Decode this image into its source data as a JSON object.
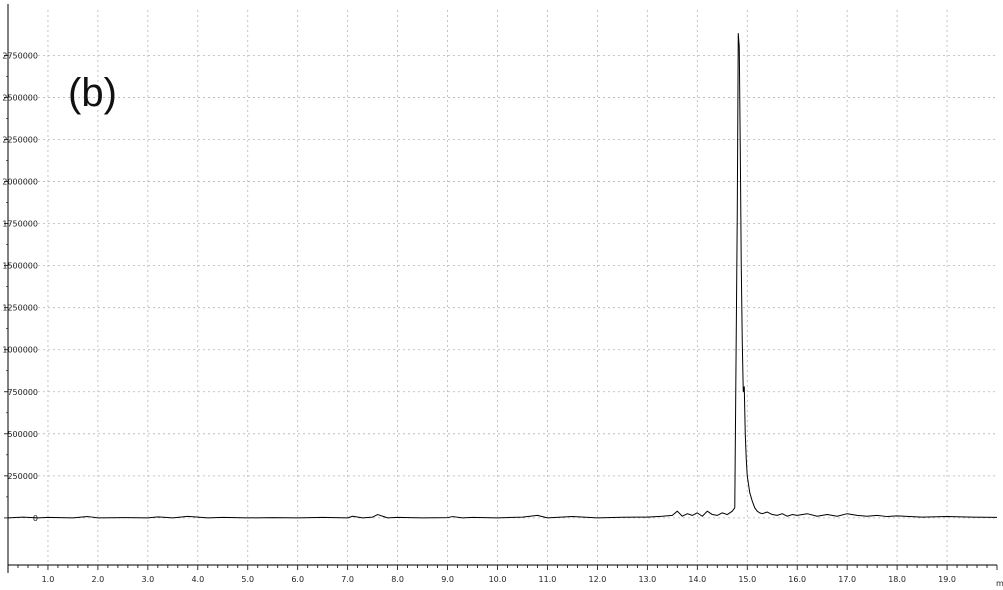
{
  "chart_data": {
    "type": "line",
    "panel_label": "(b)",
    "title": "",
    "xlabel": "",
    "ylabel": "",
    "x_unit_fragment": "m",
    "xlim": [
      0.2,
      20.0
    ],
    "ylim": [
      -280000,
      3020000
    ],
    "x_ticks": [
      1.0,
      2.0,
      3.0,
      4.0,
      5.0,
      6.0,
      7.0,
      8.0,
      9.0,
      10.0,
      11.0,
      12.0,
      13.0,
      14.0,
      15.0,
      16.0,
      17.0,
      18.0,
      19.0
    ],
    "x_tick_labels": [
      "1.0",
      "2.0",
      "3.0",
      "4.0",
      "5.0",
      "6.0",
      "7.0",
      "8.0",
      "9.0",
      "10.0",
      "11.0",
      "12.0",
      "13.0",
      "14.0",
      "15.0",
      "16.0",
      "17.0",
      "18.0",
      "19.0"
    ],
    "y_ticks": [
      0,
      250000,
      500000,
      750000,
      1000000,
      1250000,
      1500000,
      1750000,
      2000000,
      2250000,
      2500000,
      2750000
    ],
    "y_tick_labels": [
      "0",
      "250000",
      "500000",
      "750000",
      "1000000",
      "1250000",
      "1500000",
      "1750000",
      "2000000",
      "2250000",
      "2500000",
      "2750000"
    ],
    "grid": true,
    "series": [
      {
        "color": "#000000",
        "x": [
          0.2,
          0.5,
          0.8,
          1.0,
          1.5,
          1.8,
          2.0,
          2.5,
          3.0,
          3.2,
          3.5,
          3.8,
          4.0,
          4.2,
          4.5,
          5.0,
          5.5,
          6.0,
          6.5,
          7.0,
          7.1,
          7.3,
          7.5,
          7.6,
          7.8,
          8.0,
          8.5,
          9.0,
          9.1,
          9.3,
          9.5,
          10.0,
          10.5,
          10.8,
          11.0,
          11.5,
          12.0,
          12.5,
          13.0,
          13.3,
          13.5,
          13.6,
          13.7,
          13.8,
          13.9,
          14.0,
          14.1,
          14.2,
          14.3,
          14.4,
          14.5,
          14.6,
          14.7,
          14.75,
          14.8,
          14.82,
          14.84,
          14.86,
          14.88,
          14.9,
          14.92,
          14.94,
          14.96,
          14.98,
          15.0,
          15.05,
          15.1,
          15.15,
          15.2,
          15.25,
          15.3,
          15.4,
          15.5,
          15.6,
          15.7,
          15.8,
          15.9,
          16.0,
          16.2,
          16.4,
          16.6,
          16.8,
          17.0,
          17.2,
          17.4,
          17.6,
          17.8,
          18.0,
          18.5,
          19.0,
          19.5,
          20.0
        ],
        "y": [
          0,
          5000,
          0,
          3000,
          0,
          8000,
          0,
          2000,
          0,
          6000,
          0,
          9000,
          5000,
          0,
          3000,
          0,
          2000,
          0,
          3000,
          0,
          10000,
          0,
          5000,
          20000,
          0,
          3000,
          0,
          2000,
          8000,
          0,
          3000,
          0,
          5000,
          15000,
          0,
          8000,
          0,
          4000,
          5000,
          10000,
          15000,
          40000,
          10000,
          25000,
          15000,
          30000,
          10000,
          40000,
          20000,
          15000,
          30000,
          20000,
          40000,
          60000,
          1800000,
          2880000,
          2800000,
          2200000,
          1500000,
          1050000,
          750000,
          780000,
          500000,
          350000,
          250000,
          150000,
          100000,
          60000,
          40000,
          30000,
          25000,
          35000,
          20000,
          15000,
          25000,
          10000,
          20000,
          15000,
          25000,
          10000,
          20000,
          10000,
          25000,
          15000,
          10000,
          15000,
          8000,
          12000,
          5000,
          8000,
          5000,
          3000
        ]
      }
    ]
  }
}
